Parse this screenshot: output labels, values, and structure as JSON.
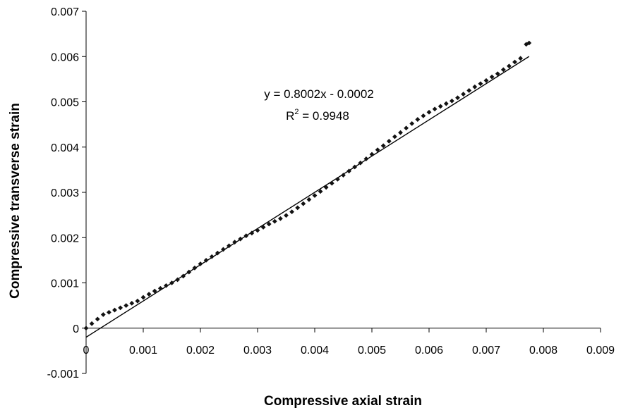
{
  "chart_data": {
    "type": "scatter",
    "title": "",
    "xlabel": "Compressive axial strain",
    "ylabel": "Compressive transverse strain",
    "xlim": [
      0,
      0.009
    ],
    "ylim": [
      -0.001,
      0.007
    ],
    "xticks": [
      0,
      0.001,
      0.002,
      0.003,
      0.004,
      0.005,
      0.006,
      0.007,
      0.008,
      0.009
    ],
    "xtick_labels": [
      "0",
      "0.001",
      "0.002",
      "0.003",
      "0.004",
      "0.005",
      "0.006",
      "0.007",
      "0.008",
      "0.009"
    ],
    "yticks": [
      -0.001,
      0,
      0.001,
      0.002,
      0.003,
      0.004,
      0.005,
      0.006,
      0.007
    ],
    "ytick_labels": [
      "-0.001",
      "0",
      "0.001",
      "0.002",
      "0.003",
      "0.004",
      "0.005",
      "0.006",
      "0.007"
    ],
    "grid": false,
    "legend": "none",
    "marker_color": "#111111",
    "line_color": "#000000",
    "series": [
      {
        "type": "scatter",
        "x": [
          0.0,
          0.0001,
          0.0002,
          0.0003,
          0.0004,
          0.0005,
          0.0006,
          0.0007,
          0.0008,
          0.0009,
          0.001,
          0.0011,
          0.0012,
          0.0013,
          0.0014,
          0.0015,
          0.0016,
          0.0017,
          0.0018,
          0.0019,
          0.002,
          0.0021,
          0.0022,
          0.0023,
          0.0024,
          0.0025,
          0.0026,
          0.0027,
          0.0028,
          0.0029,
          0.003,
          0.0031,
          0.0032,
          0.0033,
          0.0034,
          0.0035,
          0.0036,
          0.0037,
          0.0038,
          0.0039,
          0.004,
          0.0041,
          0.0042,
          0.0043,
          0.0044,
          0.0045,
          0.0046,
          0.0047,
          0.0048,
          0.0049,
          0.005,
          0.0051,
          0.0052,
          0.0053,
          0.0054,
          0.0055,
          0.0056,
          0.0057,
          0.0058,
          0.0059,
          0.006,
          0.0061,
          0.0062,
          0.0063,
          0.0064,
          0.0065,
          0.0066,
          0.0067,
          0.0068,
          0.0069,
          0.007,
          0.0071,
          0.0072,
          0.0073,
          0.0074,
          0.0075,
          0.0076,
          0.0077,
          0.00775
        ],
        "y": [
          0.0,
          0.0001,
          0.0002,
          0.0003,
          0.00035,
          0.0004,
          0.00045,
          0.0005,
          0.00055,
          0.0006,
          0.00068,
          0.00075,
          0.00082,
          0.00088,
          0.00094,
          0.001,
          0.00107,
          0.00115,
          0.00124,
          0.00133,
          0.00142,
          0.0015,
          0.00158,
          0.00166,
          0.00174,
          0.00182,
          0.0019,
          0.00197,
          0.00204,
          0.0021,
          0.00216,
          0.00223,
          0.0023,
          0.00236,
          0.00242,
          0.00249,
          0.00257,
          0.00266,
          0.00275,
          0.00284,
          0.00293,
          0.00302,
          0.00311,
          0.0032,
          0.00329,
          0.00338,
          0.00347,
          0.00356,
          0.00365,
          0.00374,
          0.00384,
          0.00394,
          0.00403,
          0.00413,
          0.00423,
          0.00432,
          0.00442,
          0.00452,
          0.00461,
          0.00469,
          0.00477,
          0.00484,
          0.0049,
          0.00496,
          0.00502,
          0.00509,
          0.00517,
          0.00525,
          0.00533,
          0.0054,
          0.00547,
          0.00555,
          0.00562,
          0.00571,
          0.00579,
          0.00588,
          0.00596,
          0.00627,
          0.0063
        ]
      }
    ],
    "trendline": {
      "type": "linear",
      "slope": 0.8002,
      "intercept": -0.0002,
      "x_range": [
        0,
        0.00775
      ],
      "equation_label": "y = 0.8002x - 0.0002",
      "r2_label_prefix": "R",
      "r2_label_sup": "2",
      "r2_label_suffix": " = 0.9948"
    }
  }
}
